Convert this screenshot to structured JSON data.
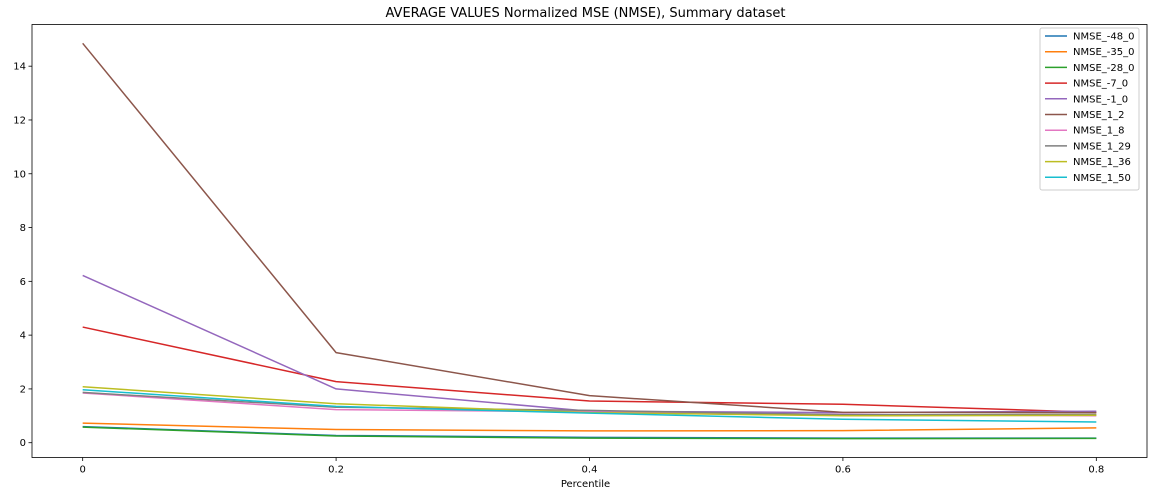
{
  "chart_data": {
    "type": "line",
    "title": "AVERAGE VALUES Normalized MSE (NMSE), Summary dataset",
    "xlabel": "Percentile",
    "ylabel": "",
    "x": [
      0,
      0.2,
      0.4,
      0.6,
      0.8
    ],
    "x_ticks": [
      "0",
      "0.2",
      "0.4",
      "0.6",
      "0.8"
    ],
    "y_ticks": [
      "0",
      "2",
      "4",
      "6",
      "8",
      "10",
      "12",
      "14"
    ],
    "xlim": [
      -0.04,
      0.84
    ],
    "ylim": [
      -0.55,
      15.55
    ],
    "grid": false,
    "legend_position": "top-right",
    "series": [
      {
        "name": "NMSE_-48_0",
        "color": "#1f77b4",
        "values": [
          0.6,
          0.27,
          0.2,
          0.17,
          0.17
        ]
      },
      {
        "name": "NMSE_-35_0",
        "color": "#ff7f0e",
        "values": [
          0.73,
          0.49,
          0.44,
          0.45,
          0.55
        ]
      },
      {
        "name": "NMSE_-28_0",
        "color": "#2ca02c",
        "values": [
          0.58,
          0.25,
          0.17,
          0.15,
          0.16
        ]
      },
      {
        "name": "NMSE_-7_0",
        "color": "#d62728",
        "values": [
          4.3,
          2.27,
          1.55,
          1.43,
          1.13
        ]
      },
      {
        "name": "NMSE_-1_0",
        "color": "#9467bd",
        "values": [
          6.22,
          2.0,
          1.17,
          1.12,
          1.17
        ]
      },
      {
        "name": "NMSE_1_2",
        "color": "#8c564b",
        "values": [
          14.85,
          3.35,
          1.75,
          1.13,
          1.12
        ]
      },
      {
        "name": "NMSE_1_8",
        "color": "#e377c2",
        "values": [
          1.85,
          1.23,
          1.15,
          1.05,
          1.0
        ]
      },
      {
        "name": "NMSE_1_29",
        "color": "#7f7f7f",
        "values": [
          1.87,
          1.32,
          1.2,
          1.04,
          1.05
        ]
      },
      {
        "name": "NMSE_1_36",
        "color": "#bcbd22",
        "values": [
          2.08,
          1.45,
          1.12,
          1.0,
          1.02
        ]
      },
      {
        "name": "NMSE_1_50",
        "color": "#17becf",
        "values": [
          1.97,
          1.35,
          1.1,
          0.87,
          0.77
        ]
      }
    ]
  }
}
